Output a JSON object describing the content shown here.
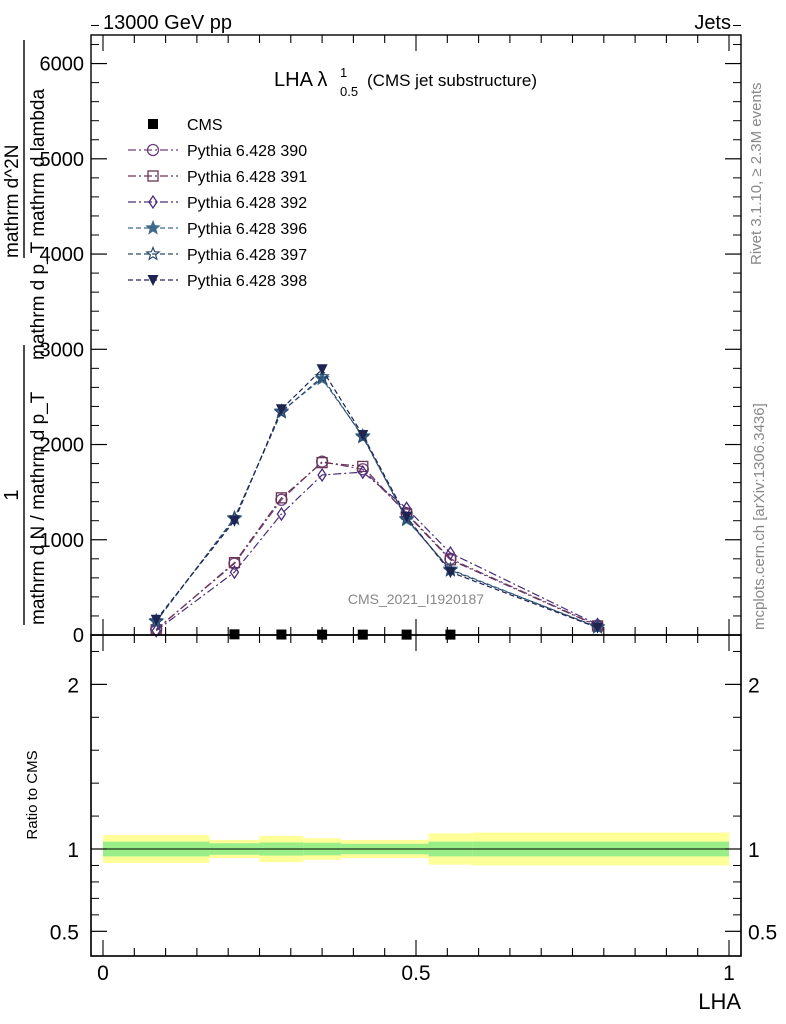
{
  "header": {
    "left": "13000 GeV pp",
    "right": "Jets"
  },
  "side_labels": {
    "rivet": "Rivet 3.1.10, ≥ 2.3M events",
    "mcplots": "mcplots.cern.ch [arXiv:1306.3436]"
  },
  "chart_data": [
    {
      "type": "line",
      "title_main": "LHA λ",
      "title_sup": "1",
      "title_sub": "0.5",
      "title_tail": "(CMS jet substructure)",
      "watermark": "CMS_2021_I1920187",
      "ylabel_numerator": "1",
      "ylabel_denominator": "mathrm d N / mathrm d p_T",
      "ylabel_right": "mathrm d^2N",
      "ylabel_right_den": "mathrm d p_T mathrm d lambda",
      "ylim": [
        0,
        6300
      ],
      "yticks": [
        0,
        1000,
        2000,
        3000,
        4000,
        5000,
        6000
      ],
      "ytick_labels": [
        "0",
        "1000",
        "2000",
        "3000",
        "4000",
        "5000",
        "6000"
      ],
      "xlim": [
        0,
        1
      ],
      "x": [
        0.085,
        0.21,
        0.285,
        0.35,
        0.415,
        0.485,
        0.555,
        0.79
      ],
      "series": [
        {
          "name": "CMS",
          "marker": "square",
          "color": "#000000",
          "dash": "none",
          "values": [
            null,
            7,
            5,
            4,
            4,
            4,
            4,
            null
          ]
        },
        {
          "name": "Pythia 6.428 390",
          "marker": "circle-open",
          "color": "#6e3f7f",
          "dash": "8,3,2,3",
          "values": [
            60,
            750,
            1420,
            1820,
            1740,
            1280,
            800,
            100
          ]
        },
        {
          "name": "Pythia 6.428 391",
          "marker": "square-open",
          "color": "#6a3553",
          "dash": "8,3,2,3",
          "values": [
            55,
            760,
            1440,
            1810,
            1770,
            1270,
            790,
            95
          ]
        },
        {
          "name": "Pythia 6.428 392",
          "marker": "diamond-open",
          "color": "#4b2d7a",
          "dash": "8,3,2,3",
          "values": [
            45,
            660,
            1270,
            1680,
            1710,
            1330,
            860,
            110
          ]
        },
        {
          "name": "Pythia 6.428 396",
          "marker": "star",
          "color": "#3f6b8a",
          "dash": "5,3",
          "values": [
            150,
            1220,
            2350,
            2690,
            2090,
            1210,
            690,
            80
          ]
        },
        {
          "name": "Pythia 6.428 397",
          "marker": "star-open",
          "color": "#2c4a6e",
          "dash": "5,3",
          "values": [
            140,
            1230,
            2340,
            2710,
            2080,
            1220,
            680,
            85
          ]
        },
        {
          "name": "Pythia 6.428 398",
          "marker": "triangle-down",
          "color": "#1e2452",
          "dash": "5,3",
          "values": [
            160,
            1200,
            2370,
            2790,
            2100,
            1240,
            660,
            78
          ]
        }
      ]
    },
    {
      "type": "area",
      "ylabel": "Ratio to CMS",
      "xlabel": "LHA",
      "xlim": [
        0,
        1
      ],
      "ylim": [
        0.35,
        2.3
      ],
      "xticks": [
        0,
        0.5,
        1
      ],
      "xtick_labels": [
        "0",
        "0.5",
        "1"
      ],
      "yticks": [
        0.5,
        1,
        2
      ],
      "ytick_labels": [
        "0.5",
        "1",
        "2"
      ],
      "bins": [
        {
          "lo": 0.0,
          "hi": 0.17,
          "inner": [
            0.955,
            1.045
          ],
          "outer": [
            0.915,
            1.085
          ]
        },
        {
          "lo": 0.17,
          "hi": 0.25,
          "inner": [
            0.965,
            1.035
          ],
          "outer": [
            0.945,
            1.055
          ]
        },
        {
          "lo": 0.25,
          "hi": 0.32,
          "inner": [
            0.96,
            1.04
          ],
          "outer": [
            0.92,
            1.08
          ]
        },
        {
          "lo": 0.32,
          "hi": 0.38,
          "inner": [
            0.962,
            1.038
          ],
          "outer": [
            0.935,
            1.065
          ]
        },
        {
          "lo": 0.38,
          "hi": 0.52,
          "inner": [
            0.968,
            1.032
          ],
          "outer": [
            0.945,
            1.055
          ]
        },
        {
          "lo": 0.52,
          "hi": 0.59,
          "inner": [
            0.955,
            1.045
          ],
          "outer": [
            0.905,
            1.095
          ]
        },
        {
          "lo": 0.59,
          "hi": 1.0,
          "inner": [
            0.955,
            1.045
          ],
          "outer": [
            0.9,
            1.1
          ]
        }
      ]
    }
  ]
}
